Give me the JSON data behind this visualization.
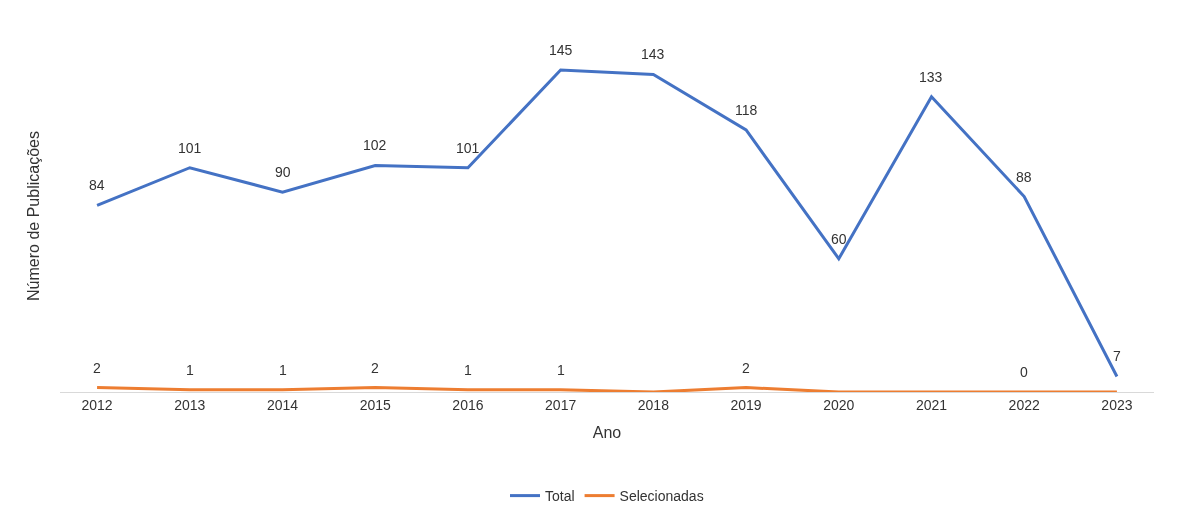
{
  "chart_data": {
    "type": "line",
    "xlabel": "Ano",
    "ylabel": "Número de Publicações",
    "categories": [
      "2012",
      "2013",
      "2014",
      "2015",
      "2016",
      "2017",
      "2018",
      "2019",
      "2020",
      "2021",
      "2022",
      "2023"
    ],
    "series": [
      {
        "name": "Total",
        "color": "#4472c4",
        "values": [
          84,
          101,
          90,
          102,
          101,
          145,
          143,
          118,
          60,
          133,
          88,
          7
        ],
        "value_labels": [
          "84",
          "101",
          "90",
          "102",
          "101",
          "145",
          "143",
          "118",
          "60",
          "133",
          "88",
          "7"
        ]
      },
      {
        "name": "Selecionadas",
        "color": "#ed7d31",
        "values": [
          2,
          1,
          1,
          2,
          1,
          1,
          0,
          2,
          0,
          0,
          0,
          0
        ],
        "value_labels": [
          "2",
          "1",
          "1",
          "2",
          "1",
          "1",
          null,
          "2",
          null,
          null,
          "0",
          null
        ]
      }
    ],
    "legend": "bottom",
    "marker": "none",
    "line_style": "solid"
  }
}
